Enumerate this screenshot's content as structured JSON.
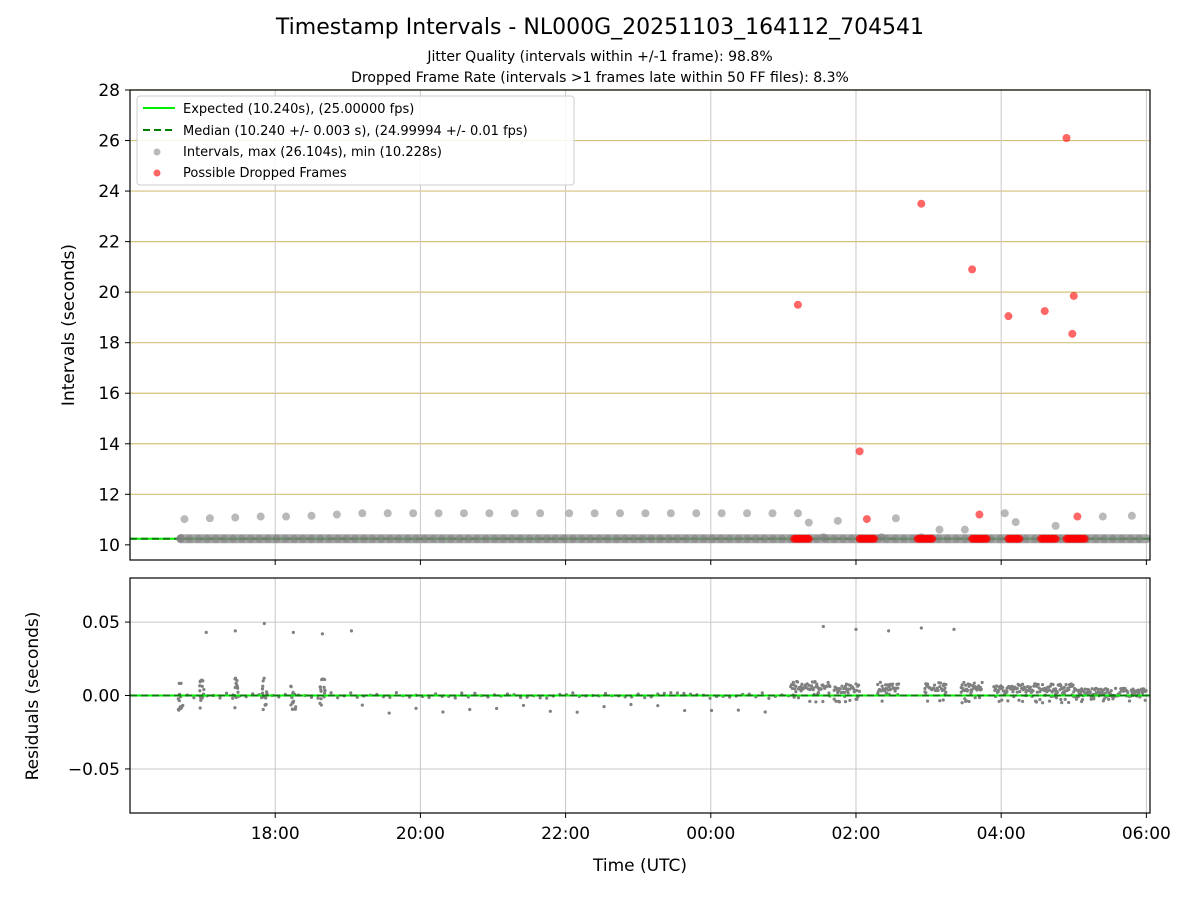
{
  "title": "Timestamp Intervals - NL000G_20251103_164112_704541",
  "subtitle_1": "Jitter Quality (intervals within +/-1 frame): 98.8%",
  "subtitle_2": "Dropped Frame Rate (intervals >1 frames late within 50 FF files): 8.3%",
  "colors": {
    "expected": "#00ee00",
    "median": "#008000",
    "intervals": "#808080",
    "dropped": "#ff0000",
    "hgrid_top": "#d4c17a",
    "grid": "#c8c8c8"
  },
  "chart_data": [
    {
      "type": "scatter",
      "ylabel": "Intervals (seconds)",
      "ylim": [
        9.4,
        28
      ],
      "yticks": [
        "10",
        "12",
        "14",
        "16",
        "18",
        "20",
        "22",
        "24",
        "26",
        "28"
      ],
      "xlim_hours": [
        16.0,
        30.05
      ],
      "grid": true,
      "legend_position": "upper-left",
      "legend": {
        "expected": "Expected (10.240s), (25.00000 fps)",
        "median": "Median (10.240 +/- 0.003 s), (24.99994 +/- 0.01 fps)",
        "intervals": "Intervals, max (26.104s), min (10.228s)",
        "dropped": "Possible Dropped Frames"
      },
      "expected_value": 10.24,
      "median_value": 10.24,
      "intervals_high": [
        [
          16.7,
          10.27
        ],
        [
          16.75,
          11.02
        ],
        [
          17.1,
          11.05
        ],
        [
          17.45,
          11.08
        ],
        [
          17.8,
          11.12
        ],
        [
          18.15,
          11.12
        ],
        [
          18.5,
          11.15
        ],
        [
          18.85,
          11.2
        ],
        [
          19.2,
          11.25
        ],
        [
          19.55,
          11.25
        ],
        [
          19.9,
          11.25
        ],
        [
          20.25,
          11.25
        ],
        [
          20.6,
          11.25
        ],
        [
          20.95,
          11.25
        ],
        [
          21.3,
          11.25
        ],
        [
          21.65,
          11.25
        ],
        [
          22.05,
          11.25
        ],
        [
          22.4,
          11.25
        ],
        [
          22.75,
          11.25
        ],
        [
          23.1,
          11.25
        ],
        [
          23.45,
          11.25
        ],
        [
          23.8,
          11.25
        ],
        [
          24.15,
          11.25
        ],
        [
          24.5,
          11.25
        ],
        [
          24.85,
          11.25
        ],
        [
          25.2,
          11.25
        ],
        [
          25.35,
          10.88
        ],
        [
          25.55,
          10.3
        ],
        [
          25.75,
          10.95
        ],
        [
          26.35,
          10.3
        ],
        [
          26.55,
          11.05
        ],
        [
          26.9,
          10.3
        ],
        [
          27.15,
          10.6
        ],
        [
          27.5,
          10.6
        ],
        [
          28.05,
          11.25
        ],
        [
          28.2,
          10.9
        ],
        [
          28.75,
          10.75
        ],
        [
          29.4,
          11.12
        ],
        [
          29.8,
          11.15
        ]
      ],
      "intervals_baseline_hours": [
        16.7,
        30.0
      ],
      "dropped_frames": [
        [
          25.2,
          19.5
        ],
        [
          26.05,
          13.7
        ],
        [
          26.15,
          11.02
        ],
        [
          26.9,
          23.5
        ],
        [
          27.6,
          20.9
        ],
        [
          27.7,
          11.2
        ],
        [
          28.1,
          19.05
        ],
        [
          28.6,
          19.25
        ],
        [
          28.9,
          26.1
        ],
        [
          29.0,
          19.85
        ],
        [
          28.98,
          18.35
        ],
        [
          29.05,
          11.12
        ]
      ],
      "dropped_clusters": [
        [
          25.15,
          25.35
        ],
        [
          26.05,
          26.25
        ],
        [
          26.85,
          27.05
        ],
        [
          27.6,
          27.8
        ],
        [
          28.1,
          28.25
        ],
        [
          28.55,
          28.75
        ],
        [
          28.9,
          29.15
        ]
      ],
      "dropped_cluster_value": 10.24
    },
    {
      "type": "scatter",
      "xlabel": "Time (UTC)",
      "ylabel": "Residuals (seconds)",
      "ylim": [
        -0.08,
        0.08
      ],
      "yticks": [
        "−0.05",
        "0.00",
        "0.05"
      ],
      "ytick_values": [
        -0.05,
        0.0,
        0.05
      ],
      "xticks": [
        "18:00",
        "20:00",
        "22:00",
        "00:00",
        "02:00",
        "04:00",
        "06:00"
      ],
      "xtick_hours": [
        18,
        20,
        22,
        24,
        26,
        28,
        30
      ],
      "grid": true,
      "outliers": [
        [
          17.05,
          0.043
        ],
        [
          17.45,
          0.044
        ],
        [
          17.85,
          0.049
        ],
        [
          18.25,
          0.043
        ],
        [
          18.65,
          0.042
        ],
        [
          19.05,
          0.044
        ],
        [
          25.55,
          0.047
        ],
        [
          26.0,
          0.045
        ],
        [
          26.45,
          0.044
        ],
        [
          26.9,
          0.046
        ],
        [
          27.35,
          0.045
        ]
      ],
      "early_cluster_hours": [
        16.7,
        17.0,
        17.45,
        17.85,
        18.25,
        18.65
      ],
      "late_segments": [
        [
          25.1,
          25.65,
          0.007
        ],
        [
          25.7,
          26.05,
          0.005
        ],
        [
          26.3,
          26.6,
          0.006
        ],
        [
          26.95,
          27.25,
          0.006
        ],
        [
          27.45,
          27.75,
          0.006
        ],
        [
          27.9,
          28.15,
          0.004
        ],
        [
          28.15,
          29.0,
          0.005
        ],
        [
          29.0,
          30.0,
          0.002
        ]
      ]
    }
  ]
}
